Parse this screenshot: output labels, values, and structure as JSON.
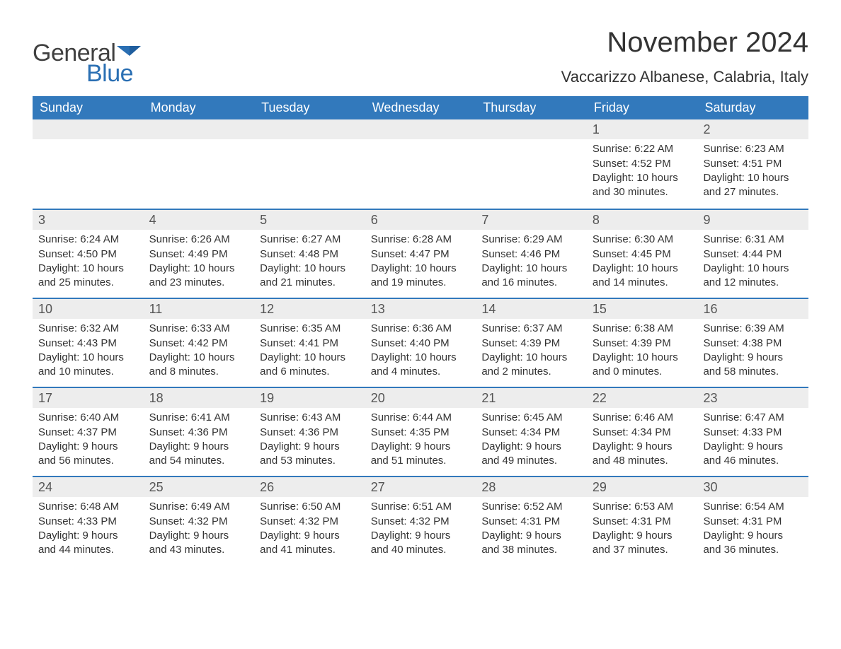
{
  "logo": {
    "word1": "General",
    "word2": "Blue",
    "accent": "#2a6fb3",
    "text": "#404040"
  },
  "title": "November 2024",
  "location": "Vaccarizzo Albanese, Calabria, Italy",
  "colors": {
    "header_bg": "#3279bc",
    "header_text": "#ffffff",
    "row_divider": "#3279bc",
    "daynum_bg": "#ededed",
    "body_text": "#333333"
  },
  "typography": {
    "month_title_size_pt": 30,
    "location_size_pt": 16,
    "day_header_size_pt": 14,
    "cell_text_size_pt": 11
  },
  "day_headers": [
    "Sunday",
    "Monday",
    "Tuesday",
    "Wednesday",
    "Thursday",
    "Friday",
    "Saturday"
  ],
  "weeks": [
    [
      null,
      null,
      null,
      null,
      null,
      {
        "n": "1",
        "sunrise": "6:22 AM",
        "sunset": "4:52 PM",
        "daylight": "10 hours and 30 minutes."
      },
      {
        "n": "2",
        "sunrise": "6:23 AM",
        "sunset": "4:51 PM",
        "daylight": "10 hours and 27 minutes."
      }
    ],
    [
      {
        "n": "3",
        "sunrise": "6:24 AM",
        "sunset": "4:50 PM",
        "daylight": "10 hours and 25 minutes."
      },
      {
        "n": "4",
        "sunrise": "6:26 AM",
        "sunset": "4:49 PM",
        "daylight": "10 hours and 23 minutes."
      },
      {
        "n": "5",
        "sunrise": "6:27 AM",
        "sunset": "4:48 PM",
        "daylight": "10 hours and 21 minutes."
      },
      {
        "n": "6",
        "sunrise": "6:28 AM",
        "sunset": "4:47 PM",
        "daylight": "10 hours and 19 minutes."
      },
      {
        "n": "7",
        "sunrise": "6:29 AM",
        "sunset": "4:46 PM",
        "daylight": "10 hours and 16 minutes."
      },
      {
        "n": "8",
        "sunrise": "6:30 AM",
        "sunset": "4:45 PM",
        "daylight": "10 hours and 14 minutes."
      },
      {
        "n": "9",
        "sunrise": "6:31 AM",
        "sunset": "4:44 PM",
        "daylight": "10 hours and 12 minutes."
      }
    ],
    [
      {
        "n": "10",
        "sunrise": "6:32 AM",
        "sunset": "4:43 PM",
        "daylight": "10 hours and 10 minutes."
      },
      {
        "n": "11",
        "sunrise": "6:33 AM",
        "sunset": "4:42 PM",
        "daylight": "10 hours and 8 minutes."
      },
      {
        "n": "12",
        "sunrise": "6:35 AM",
        "sunset": "4:41 PM",
        "daylight": "10 hours and 6 minutes."
      },
      {
        "n": "13",
        "sunrise": "6:36 AM",
        "sunset": "4:40 PM",
        "daylight": "10 hours and 4 minutes."
      },
      {
        "n": "14",
        "sunrise": "6:37 AM",
        "sunset": "4:39 PM",
        "daylight": "10 hours and 2 minutes."
      },
      {
        "n": "15",
        "sunrise": "6:38 AM",
        "sunset": "4:39 PM",
        "daylight": "10 hours and 0 minutes."
      },
      {
        "n": "16",
        "sunrise": "6:39 AM",
        "sunset": "4:38 PM",
        "daylight": "9 hours and 58 minutes."
      }
    ],
    [
      {
        "n": "17",
        "sunrise": "6:40 AM",
        "sunset": "4:37 PM",
        "daylight": "9 hours and 56 minutes."
      },
      {
        "n": "18",
        "sunrise": "6:41 AM",
        "sunset": "4:36 PM",
        "daylight": "9 hours and 54 minutes."
      },
      {
        "n": "19",
        "sunrise": "6:43 AM",
        "sunset": "4:36 PM",
        "daylight": "9 hours and 53 minutes."
      },
      {
        "n": "20",
        "sunrise": "6:44 AM",
        "sunset": "4:35 PM",
        "daylight": "9 hours and 51 minutes."
      },
      {
        "n": "21",
        "sunrise": "6:45 AM",
        "sunset": "4:34 PM",
        "daylight": "9 hours and 49 minutes."
      },
      {
        "n": "22",
        "sunrise": "6:46 AM",
        "sunset": "4:34 PM",
        "daylight": "9 hours and 48 minutes."
      },
      {
        "n": "23",
        "sunrise": "6:47 AM",
        "sunset": "4:33 PM",
        "daylight": "9 hours and 46 minutes."
      }
    ],
    [
      {
        "n": "24",
        "sunrise": "6:48 AM",
        "sunset": "4:33 PM",
        "daylight": "9 hours and 44 minutes."
      },
      {
        "n": "25",
        "sunrise": "6:49 AM",
        "sunset": "4:32 PM",
        "daylight": "9 hours and 43 minutes."
      },
      {
        "n": "26",
        "sunrise": "6:50 AM",
        "sunset": "4:32 PM",
        "daylight": "9 hours and 41 minutes."
      },
      {
        "n": "27",
        "sunrise": "6:51 AM",
        "sunset": "4:32 PM",
        "daylight": "9 hours and 40 minutes."
      },
      {
        "n": "28",
        "sunrise": "6:52 AM",
        "sunset": "4:31 PM",
        "daylight": "9 hours and 38 minutes."
      },
      {
        "n": "29",
        "sunrise": "6:53 AM",
        "sunset": "4:31 PM",
        "daylight": "9 hours and 37 minutes."
      },
      {
        "n": "30",
        "sunrise": "6:54 AM",
        "sunset": "4:31 PM",
        "daylight": "9 hours and 36 minutes."
      }
    ]
  ],
  "labels": {
    "sunrise": "Sunrise: ",
    "sunset": "Sunset: ",
    "daylight": "Daylight: "
  }
}
